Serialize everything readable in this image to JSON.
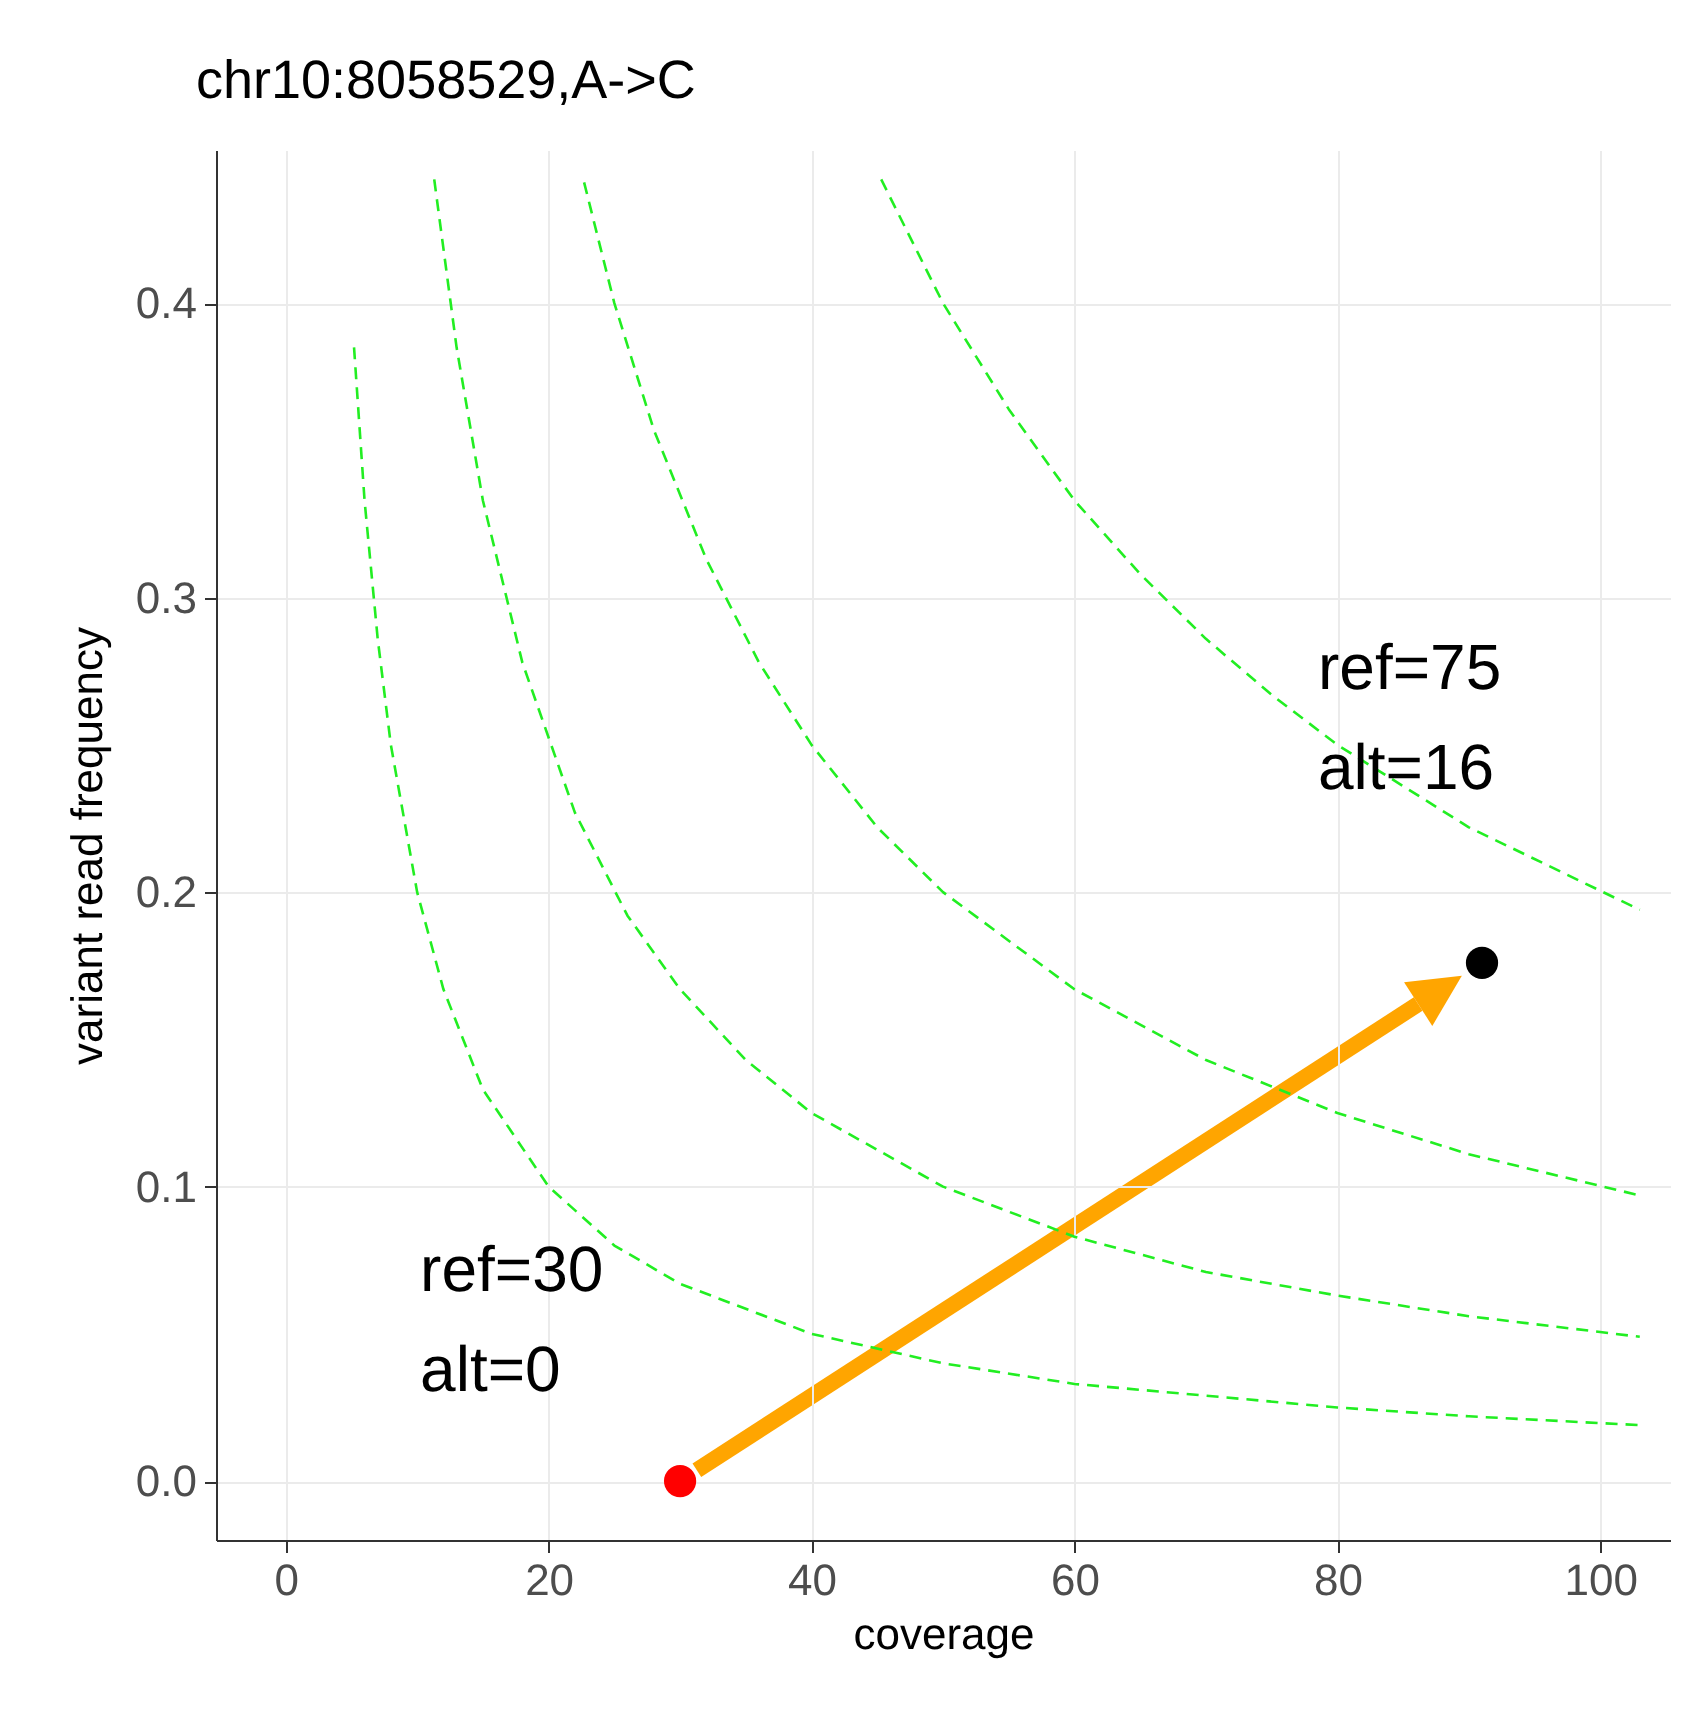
{
  "chart_data": {
    "type": "line",
    "title": "chr10:8058529,A->C",
    "xlabel": "coverage",
    "ylabel": "variant read frequency",
    "xlim": [
      -5.3,
      105.3
    ],
    "ylim": [
      -0.02,
      0.452
    ],
    "xticks": [
      0,
      20,
      40,
      60,
      80,
      100
    ],
    "yticks": [
      {
        "value": 0,
        "label": "0.0"
      },
      0.1,
      0.2,
      0.3,
      0.4
    ],
    "grid": true,
    "series": [
      {
        "line_style": "dashed",
        "marker": "none",
        "color": "#22ee22",
        "x": [
          5.2,
          6,
          7,
          8,
          10,
          12,
          15,
          20,
          25,
          30,
          40,
          50,
          60,
          70,
          80,
          90,
          103
        ],
        "values": [
          0.385,
          0.333,
          0.286,
          0.25,
          0.2,
          0.167,
          0.133,
          0.1,
          0.08,
          0.067,
          0.05,
          0.04,
          0.033,
          0.029,
          0.025,
          0.022,
          0.019
        ]
      },
      {
        "line_style": "dashed",
        "marker": "none",
        "color": "#22ee22",
        "x": [
          11.3,
          13,
          15,
          18,
          22,
          26,
          30,
          35,
          40,
          50,
          60,
          70,
          80,
          90,
          103
        ],
        "values": [
          0.442,
          0.385,
          0.333,
          0.278,
          0.227,
          0.192,
          0.167,
          0.143,
          0.125,
          0.1,
          0.083,
          0.071,
          0.063,
          0.056,
          0.049
        ]
      },
      {
        "line_style": "dashed",
        "marker": "none",
        "color": "#22ee22",
        "x": [
          22.7,
          25,
          28,
          32,
          36,
          40,
          45,
          50,
          60,
          70,
          80,
          90,
          103
        ],
        "values": [
          0.441,
          0.4,
          0.357,
          0.313,
          0.278,
          0.25,
          0.222,
          0.2,
          0.167,
          0.143,
          0.125,
          0.111,
          0.097
        ]
      },
      {
        "line_style": "dashed",
        "marker": "none",
        "color": "#22ee22",
        "x": [
          45.3,
          50,
          55,
          60,
          65,
          70,
          75,
          80,
          90,
          103
        ],
        "values": [
          0.442,
          0.4,
          0.364,
          0.333,
          0.308,
          0.286,
          0.267,
          0.25,
          0.222,
          0.194
        ]
      },
      {
        "type": "scatter",
        "marker": "circle",
        "x": [
          30,
          91
        ],
        "values": [
          0,
          0.176
        ],
        "colors": [
          "#ff0000",
          "#000000"
        ]
      }
    ],
    "annotations": [
      {
        "text": "ref=30\nalt=0",
        "x": 30,
        "y": 0
      },
      {
        "text": "ref=75\nalt=16",
        "x": 91,
        "y": 0.176
      }
    ]
  }
}
